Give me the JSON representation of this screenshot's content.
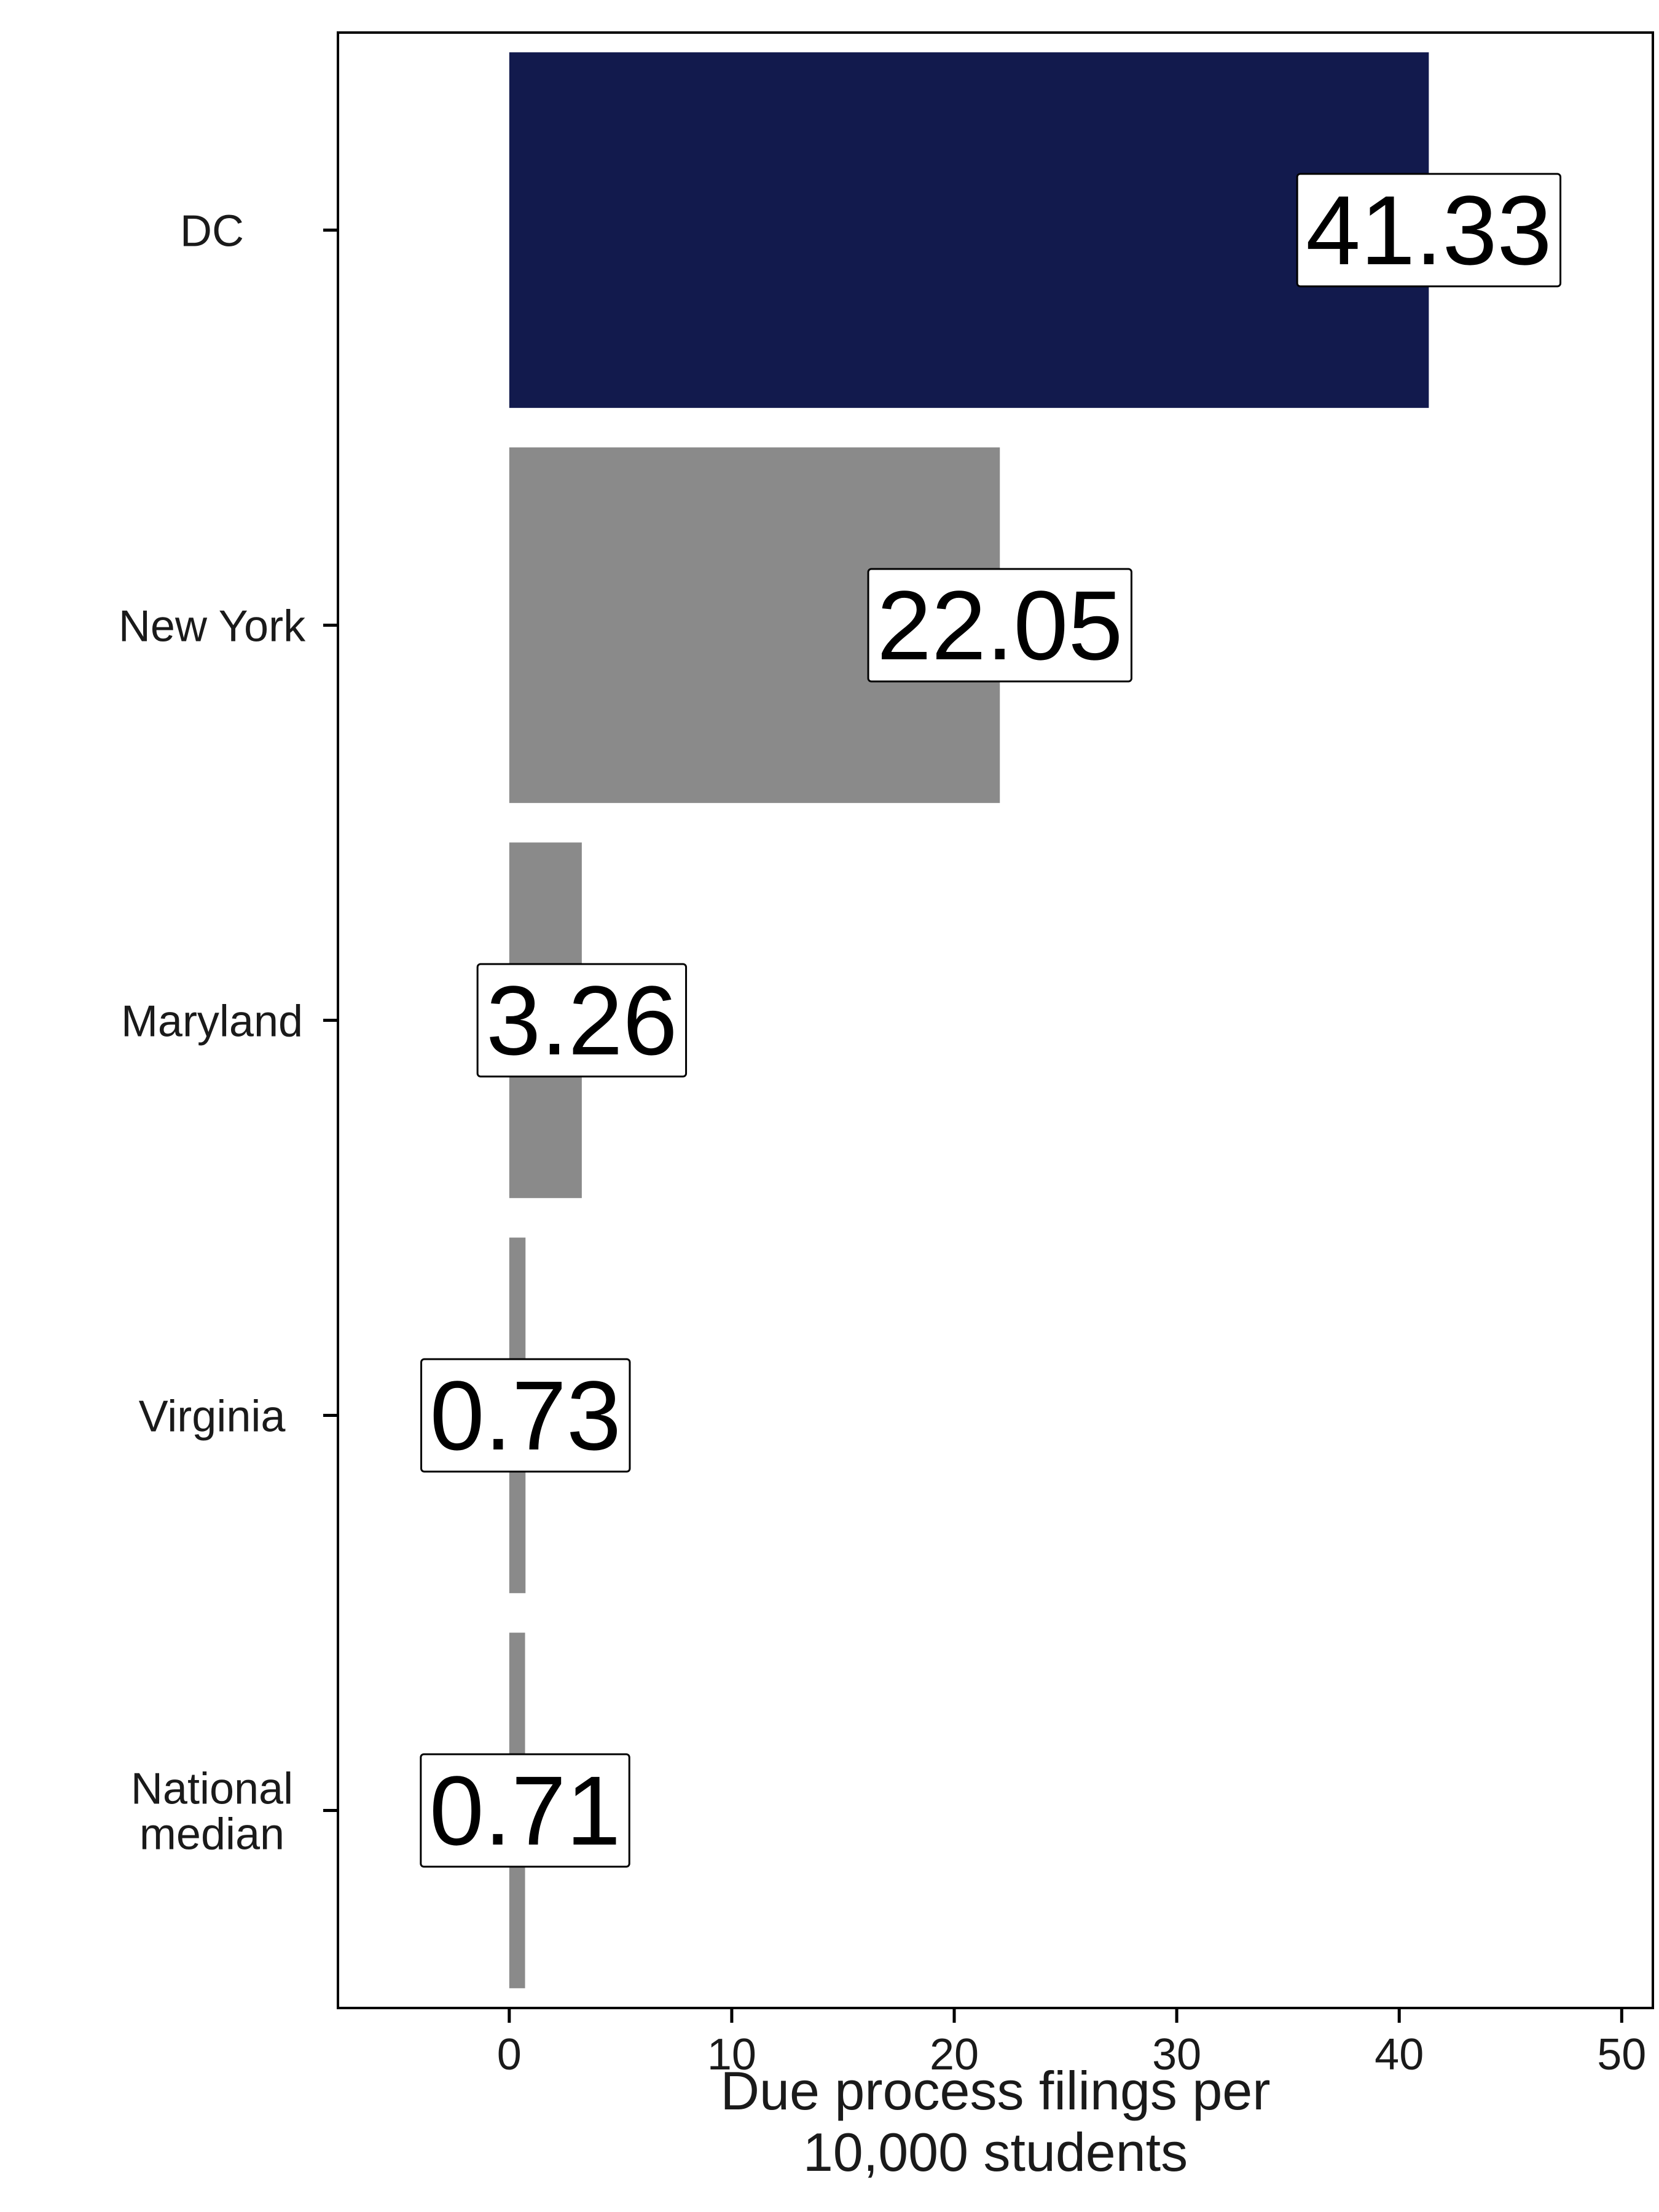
{
  "chart_data": {
    "type": "bar",
    "orientation": "horizontal",
    "categories": [
      "DC",
      "New York",
      "Maryland",
      "Virginia",
      "National\nmedian"
    ],
    "values": [
      41.33,
      22.05,
      3.26,
      0.73,
      0.71
    ],
    "value_labels": [
      "41.33",
      "22.05",
      "3.26",
      "0.73",
      "0.71"
    ],
    "highlight_category": "DC",
    "colors": {
      "highlight": "#121a4d",
      "default": "#8a8a8a"
    },
    "title": "",
    "xlabel": "Due process filings per\n10,000 students",
    "ylabel": "",
    "xlim": [
      -7.7,
      51.4
    ],
    "xticks": [
      0,
      10,
      20,
      30,
      40,
      50
    ],
    "grid": false,
    "legend": "none"
  }
}
